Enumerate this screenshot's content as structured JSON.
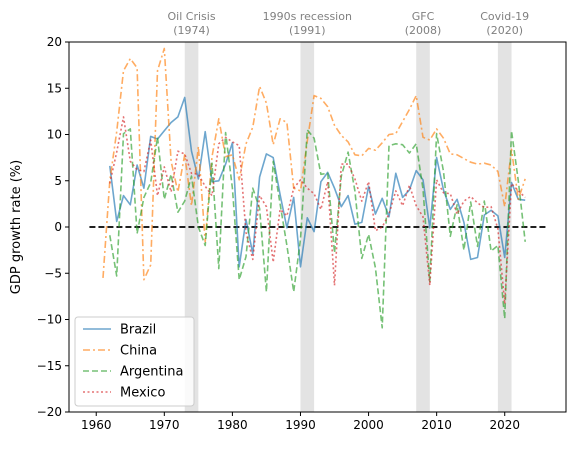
{
  "chart_data": {
    "type": "line",
    "title": "",
    "xlabel": "",
    "ylabel": "GDP growth rate (%)",
    "xlim": [
      1956,
      2029
    ],
    "ylim": [
      -20,
      20
    ],
    "xticks": [
      1960,
      1970,
      1980,
      1990,
      2000,
      2010,
      2020
    ],
    "yticks": [
      -20,
      -15,
      -10,
      -5,
      0,
      5,
      10,
      15,
      20
    ],
    "grid": false,
    "legend_position": "lower-left",
    "zero_line": {
      "y": 0,
      "x_start": 1959,
      "x_end": 2026,
      "style": "dashed",
      "color": "#000000"
    },
    "shaded_events": [
      {
        "label_line1": "Oil Crisis",
        "label_line2": "(1974)",
        "x_start": 1973,
        "x_end": 1975
      },
      {
        "label_line1": "1990s recession",
        "label_line2": "(1991)",
        "x_start": 1990,
        "x_end": 1992
      },
      {
        "label_line1": "GFC",
        "label_line2": "(2008)",
        "x_start": 2007,
        "x_end": 2009
      },
      {
        "label_line1": "Covid-19",
        "label_line2": "(2020)",
        "x_start": 2019,
        "x_end": 2021
      }
    ],
    "series": [
      {
        "name": "Brazil",
        "color": "#1f77b4",
        "dash": "solid",
        "x": [
          1962,
          1963,
          1964,
          1965,
          1966,
          1967,
          1968,
          1969,
          1970,
          1971,
          1972,
          1973,
          1974,
          1975,
          1976,
          1977,
          1978,
          1979,
          1980,
          1981,
          1982,
          1983,
          1984,
          1985,
          1986,
          1987,
          1988,
          1989,
          1990,
          1991,
          1992,
          1993,
          1994,
          1995,
          1996,
          1997,
          1998,
          1999,
          2000,
          2001,
          2002,
          2003,
          2004,
          2005,
          2006,
          2007,
          2008,
          2009,
          2010,
          2011,
          2012,
          2013,
          2014,
          2015,
          2016,
          2017,
          2018,
          2019,
          2020,
          2021,
          2022,
          2023
        ],
        "y": [
          6.6,
          0.6,
          3.4,
          2.4,
          6.7,
          4.2,
          9.8,
          9.5,
          10.4,
          11.3,
          11.9,
          14.0,
          8.2,
          5.2,
          10.3,
          4.9,
          5.0,
          6.8,
          9.1,
          -4.3,
          0.8,
          -2.9,
          5.4,
          7.9,
          7.5,
          3.5,
          -0.1,
          3.2,
          -4.3,
          1.0,
          -0.5,
          4.9,
          5.9,
          4.2,
          2.2,
          3.4,
          0.3,
          0.5,
          4.4,
          1.4,
          3.1,
          1.1,
          5.8,
          3.2,
          4.0,
          6.1,
          5.1,
          -0.1,
          7.5,
          4.0,
          1.9,
          3.0,
          0.5,
          -3.5,
          -3.3,
          1.3,
          1.8,
          1.2,
          -3.3,
          4.8,
          3.0,
          2.9
        ]
      },
      {
        "name": "China",
        "color": "#ff7f0e",
        "dash": "dashdot",
        "x": [
          1961,
          1962,
          1963,
          1964,
          1965,
          1966,
          1967,
          1968,
          1969,
          1970,
          1971,
          1972,
          1973,
          1974,
          1975,
          1976,
          1977,
          1978,
          1979,
          1980,
          1981,
          1982,
          1983,
          1984,
          1985,
          1986,
          1987,
          1988,
          1989,
          1990,
          1991,
          1992,
          1993,
          1994,
          1995,
          1996,
          1997,
          1998,
          1999,
          2000,
          2001,
          2002,
          2003,
          2004,
          2005,
          2006,
          2007,
          2008,
          2009,
          2010,
          2011,
          2012,
          2013,
          2014,
          2015,
          2016,
          2017,
          2018,
          2019,
          2020,
          2021,
          2022,
          2023
        ],
        "y": [
          -5.5,
          5.0,
          10.3,
          16.9,
          18.2,
          17.2,
          -5.7,
          -4.1,
          16.9,
          19.3,
          7.1,
          3.8,
          7.8,
          2.3,
          8.7,
          -1.6,
          7.6,
          11.7,
          7.6,
          7.8,
          5.1,
          9.0,
          10.8,
          15.2,
          13.4,
          8.9,
          11.7,
          11.3,
          4.2,
          3.9,
          9.3,
          14.2,
          13.9,
          13.0,
          11.0,
          9.9,
          9.2,
          7.8,
          7.7,
          8.5,
          8.3,
          9.1,
          10.0,
          10.1,
          11.4,
          12.7,
          14.2,
          9.7,
          9.4,
          10.6,
          9.6,
          7.9,
          7.8,
          7.4,
          7.0,
          6.8,
          6.9,
          6.7,
          6.0,
          2.2,
          8.4,
          3.0,
          5.2
        ]
      },
      {
        "name": "Argentina",
        "color": "#2ca02c",
        "dash": "dashed",
        "x": [
          1962,
          1963,
          1964,
          1965,
          1966,
          1967,
          1968,
          1969,
          1970,
          1971,
          1972,
          1973,
          1974,
          1975,
          1976,
          1977,
          1978,
          1979,
          1980,
          1981,
          1982,
          1983,
          1984,
          1985,
          1986,
          1987,
          1988,
          1989,
          1990,
          1991,
          1992,
          1993,
          1994,
          1995,
          1996,
          1997,
          1998,
          1999,
          2000,
          2001,
          2002,
          2003,
          2004,
          2005,
          2006,
          2007,
          2008,
          2009,
          2010,
          2011,
          2012,
          2013,
          2014,
          2015,
          2016,
          2017,
          2018,
          2019,
          2020,
          2021,
          2022,
          2023
        ],
        "y": [
          -0.9,
          -5.3,
          10.1,
          10.6,
          -0.7,
          3.2,
          4.8,
          9.7,
          3.0,
          5.7,
          1.6,
          2.8,
          5.5,
          0.0,
          -2.0,
          6.9,
          -4.5,
          10.2,
          4.2,
          -5.7,
          -3.2,
          4.2,
          2.0,
          -7.0,
          7.1,
          2.5,
          -2.0,
          -7.0,
          -1.3,
          10.5,
          9.6,
          5.7,
          5.8,
          -2.8,
          5.5,
          8.1,
          3.9,
          -3.4,
          -0.8,
          -4.4,
          -10.9,
          8.8,
          9.0,
          8.9,
          8.0,
          9.0,
          4.1,
          -5.9,
          10.1,
          6.0,
          -1.0,
          2.4,
          -2.5,
          2.7,
          -2.1,
          2.8,
          -2.6,
          -2.0,
          -9.9,
          10.4,
          5.0,
          -1.6
        ]
      },
      {
        "name": "Mexico",
        "color": "#d62728",
        "dash": "dotted",
        "x": [
          1962,
          1963,
          1964,
          1965,
          1966,
          1967,
          1968,
          1969,
          1970,
          1971,
          1972,
          1973,
          1974,
          1975,
          1976,
          1977,
          1978,
          1979,
          1980,
          1981,
          1982,
          1983,
          1984,
          1985,
          1986,
          1987,
          1988,
          1989,
          1990,
          1991,
          1992,
          1993,
          1994,
          1995,
          1996,
          1997,
          1998,
          1999,
          2000,
          2001,
          2002,
          2003,
          2004,
          2005,
          2006,
          2007,
          2008,
          2009,
          2010,
          2011,
          2012,
          2013,
          2014,
          2015,
          2016,
          2017,
          2018,
          2019,
          2020,
          2021,
          2022,
          2023
        ],
        "y": [
          4.7,
          8.1,
          11.9,
          7.1,
          6.2,
          6.0,
          9.4,
          3.4,
          6.5,
          3.8,
          8.2,
          7.9,
          5.8,
          5.7,
          4.4,
          3.4,
          9.0,
          9.7,
          9.2,
          8.8,
          -0.6,
          -3.5,
          3.4,
          2.2,
          -3.8,
          1.9,
          1.2,
          4.2,
          5.1,
          4.2,
          3.6,
          1.9,
          4.9,
          -6.3,
          6.8,
          6.8,
          5.2,
          2.8,
          4.9,
          -0.4,
          0.0,
          1.4,
          3.9,
          2.3,
          4.5,
          2.3,
          1.1,
          -6.3,
          5.1,
          3.7,
          3.6,
          1.4,
          2.8,
          3.3,
          2.6,
          2.1,
          2.2,
          -0.2,
          -8.3,
          4.7,
          3.9,
          3.2
        ]
      }
    ]
  }
}
